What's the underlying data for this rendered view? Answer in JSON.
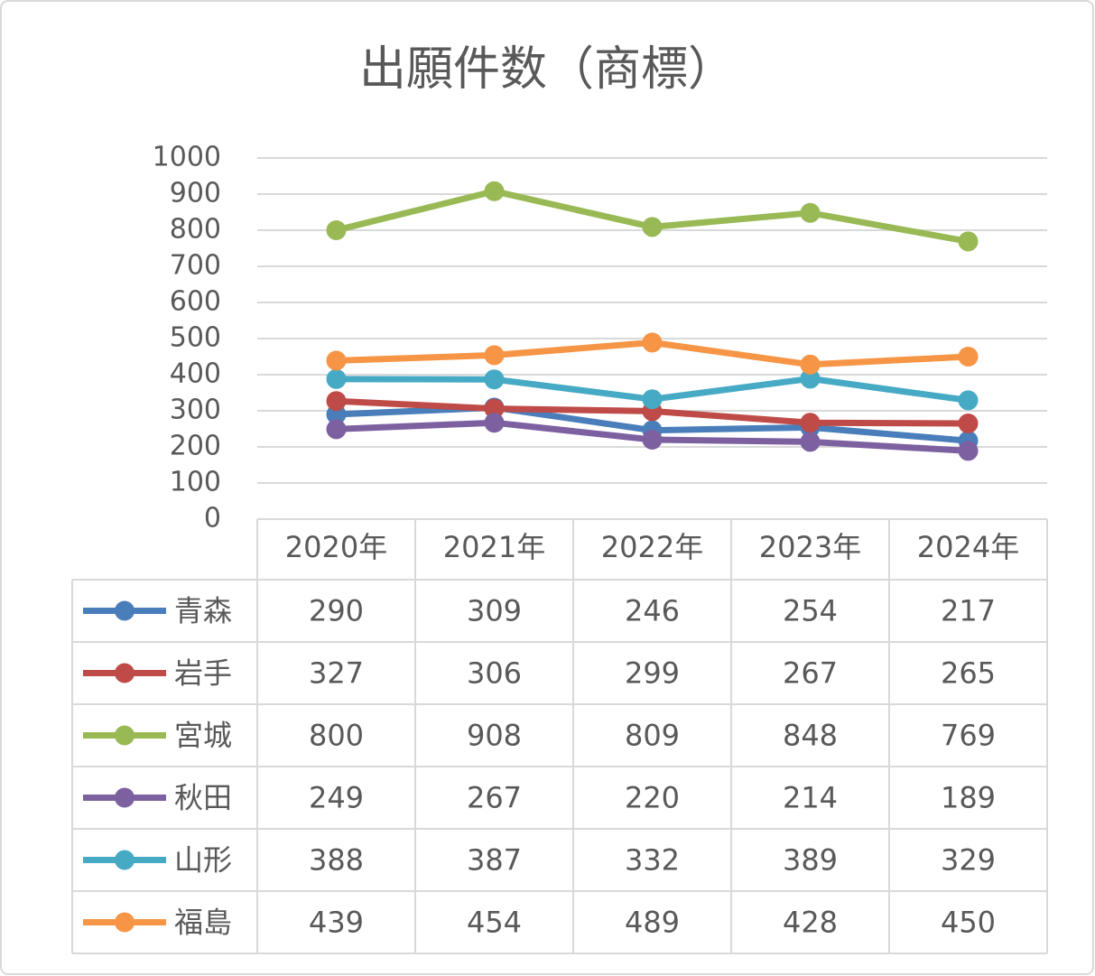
{
  "chart_data": {
    "type": "line",
    "title": "出願件数（商標）",
    "categories": [
      "2020年",
      "2021年",
      "2022年",
      "2023年",
      "2024年"
    ],
    "series": [
      {
        "name": "青森",
        "color": "#4a7ebb",
        "values": [
          290,
          309,
          246,
          254,
          217
        ]
      },
      {
        "name": "岩手",
        "color": "#be4b48",
        "values": [
          327,
          306,
          299,
          267,
          265
        ]
      },
      {
        "name": "宮城",
        "color": "#98b954",
        "values": [
          800,
          908,
          809,
          848,
          769
        ]
      },
      {
        "name": "秋田",
        "color": "#7d60a0",
        "values": [
          249,
          267,
          220,
          214,
          189
        ]
      },
      {
        "name": "山形",
        "color": "#46aac5",
        "values": [
          388,
          387,
          332,
          389,
          329
        ]
      },
      {
        "name": "福島",
        "color": "#f69546",
        "values": [
          439,
          454,
          489,
          428,
          450
        ]
      }
    ],
    "ylim": [
      0,
      1000
    ],
    "yticks": [
      0,
      100,
      200,
      300,
      400,
      500,
      600,
      700,
      800,
      900,
      1000
    ],
    "grid": true
  }
}
